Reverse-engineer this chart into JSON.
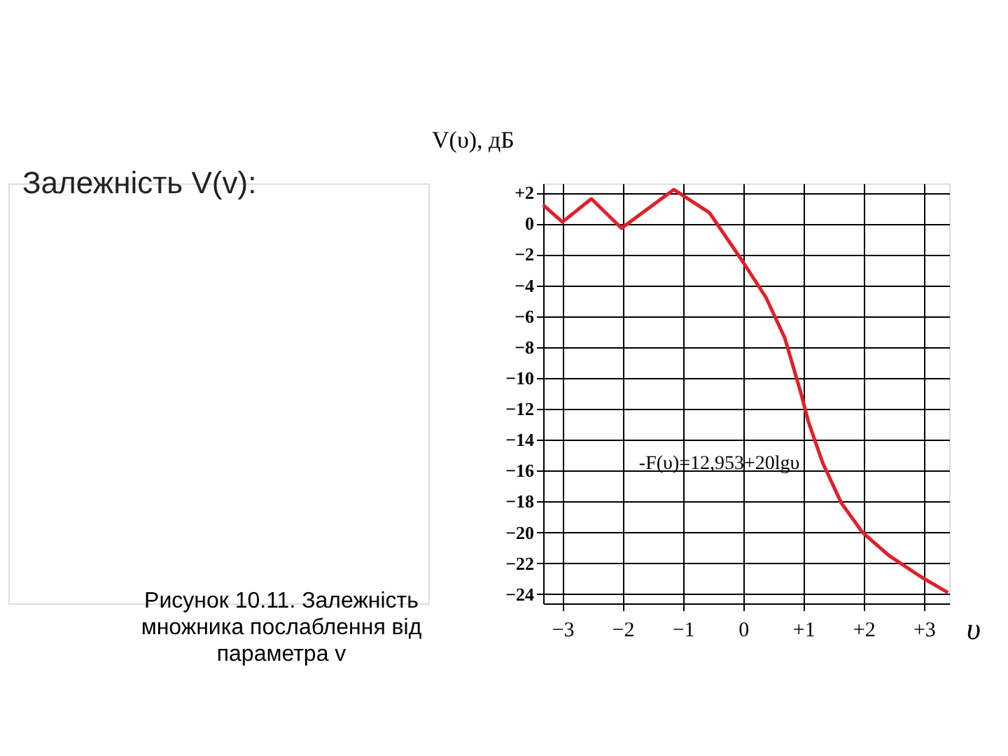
{
  "chart_data": {
    "type": "line",
    "title": "Залежність V(v):",
    "ylabel": "V(υ), дБ",
    "xlabel": "υ",
    "x": [
      -3.32,
      -3.0,
      -2.52,
      -2.02,
      -1.15,
      -0.56,
      0.0,
      0.38,
      0.69,
      0.96,
      1.08,
      1.32,
      1.63,
      1.98,
      2.42,
      2.96,
      3.4
    ],
    "series": [
      {
        "color": "#e0202a",
        "values": [
          1.2,
          0.1,
          1.6,
          -0.3,
          2.2,
          0.7,
          -2.5,
          -4.8,
          -7.4,
          -11.0,
          -12.8,
          -15.5,
          -18.1,
          -20.0,
          -21.5,
          -22.9,
          -23.9
        ]
      }
    ],
    "xlim": [
      -3.32,
      3.42
    ],
    "ylim": [
      -24.6,
      2.6
    ],
    "xticks": [
      -3,
      -2,
      -1,
      0,
      {
        "value": 1,
        "label": "+1"
      },
      {
        "value": 2,
        "label": "+2"
      },
      {
        "value": 3,
        "label": "+3"
      }
    ],
    "yticks": [
      {
        "value": 2,
        "label": "+2"
      },
      0,
      -2,
      -4,
      -6,
      -8,
      -10,
      -12,
      -14,
      -16,
      -18,
      -20,
      -22,
      -24
    ],
    "grid": true,
    "marker": "none",
    "line_style": "solid",
    "annotations": [
      {
        "text": "-F(υ)=12,953+20lgυ",
        "x": 1.45,
        "y": -16.6
      },
      "Рисунок 10.11. Залежність множника послаблення від параметра v"
    ]
  }
}
